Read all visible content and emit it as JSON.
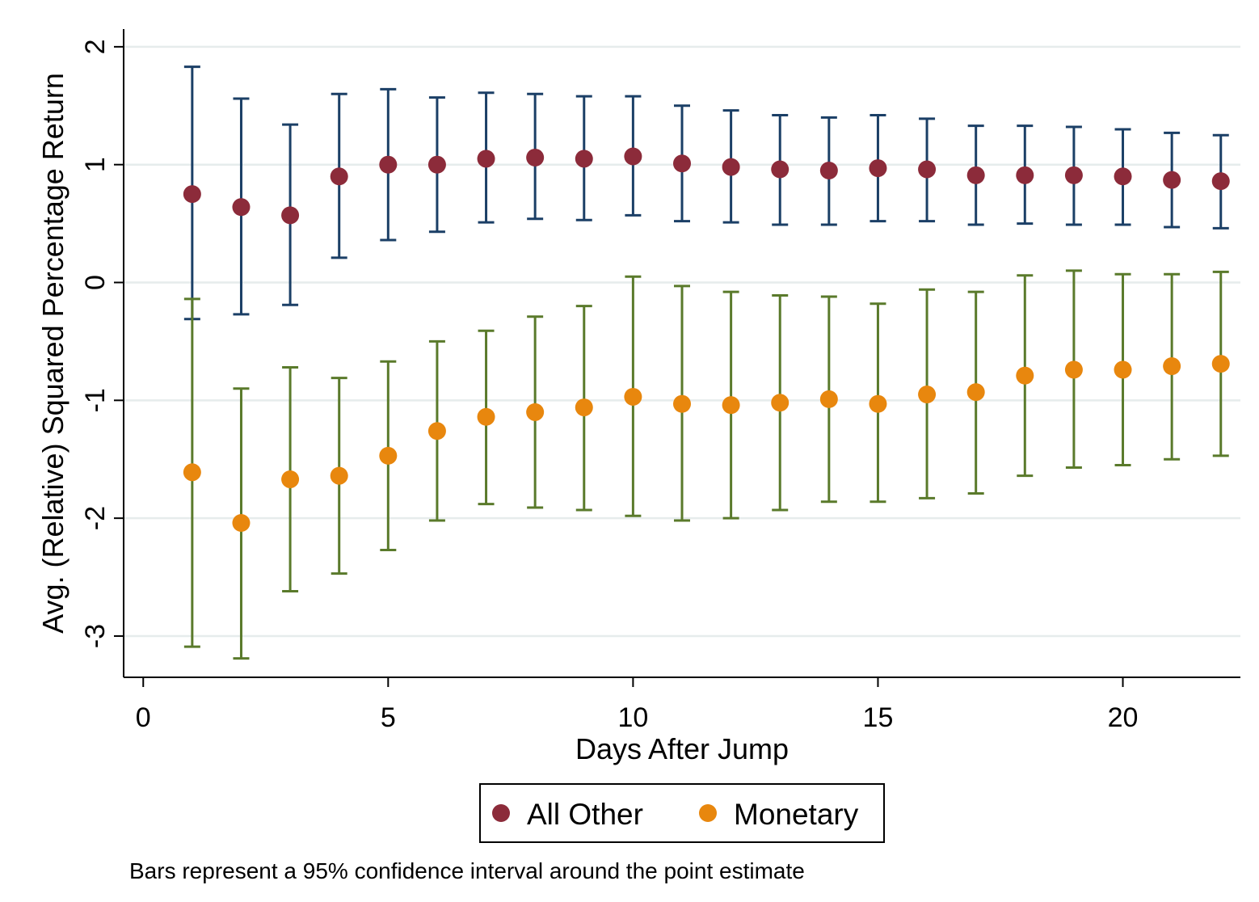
{
  "chart_data": {
    "type": "scatter",
    "xlabel": "Days After Jump",
    "ylabel": "Avg. (Relative) Squared Percentage Return",
    "xlim": [
      -0.4,
      22.4
    ],
    "ylim": [
      -3.35,
      2.15
    ],
    "xticks": [
      0,
      5,
      10,
      15,
      20
    ],
    "yticks": [
      -3,
      -2,
      -1,
      0,
      1,
      2
    ],
    "grid": "horizontal",
    "legend_position": "bottom",
    "note": "Bars represent a 95% confidence interval around the point estimate",
    "x": [
      1,
      2,
      3,
      4,
      5,
      6,
      7,
      8,
      9,
      10,
      11,
      12,
      13,
      14,
      15,
      16,
      17,
      18,
      19,
      20,
      21,
      22
    ],
    "series": [
      {
        "name": "All Other",
        "color": "#8c2b3a",
        "bar_color": "#1b3f66",
        "values": [
          0.75,
          0.64,
          0.57,
          0.9,
          1.0,
          1.0,
          1.05,
          1.06,
          1.05,
          1.07,
          1.01,
          0.98,
          0.96,
          0.95,
          0.97,
          0.96,
          0.91,
          0.91,
          0.91,
          0.9,
          0.87,
          0.86
        ],
        "lower": [
          -0.31,
          -0.27,
          -0.19,
          0.21,
          0.36,
          0.43,
          0.51,
          0.54,
          0.53,
          0.57,
          0.52,
          0.51,
          0.49,
          0.49,
          0.52,
          0.52,
          0.49,
          0.5,
          0.49,
          0.49,
          0.47,
          0.46
        ],
        "upper": [
          1.83,
          1.56,
          1.34,
          1.6,
          1.64,
          1.57,
          1.61,
          1.6,
          1.58,
          1.58,
          1.5,
          1.46,
          1.42,
          1.4,
          1.42,
          1.39,
          1.33,
          1.33,
          1.32,
          1.3,
          1.27,
          1.25
        ]
      },
      {
        "name": "Monetary",
        "color": "#e8870e",
        "bar_color": "#5a7a2b",
        "values": [
          -1.61,
          -2.04,
          -1.67,
          -1.64,
          -1.47,
          -1.26,
          -1.14,
          -1.1,
          -1.06,
          -0.97,
          -1.03,
          -1.04,
          -1.02,
          -0.99,
          -1.03,
          -0.95,
          -0.93,
          -0.79,
          -0.74,
          -0.74,
          -0.71,
          -0.69
        ],
        "lower": [
          -3.09,
          -3.19,
          -2.62,
          -2.47,
          -2.27,
          -2.02,
          -1.88,
          -1.91,
          -1.93,
          -1.98,
          -2.02,
          -2.0,
          -1.93,
          -1.86,
          -1.86,
          -1.83,
          -1.79,
          -1.64,
          -1.57,
          -1.55,
          -1.5,
          -1.47
        ],
        "upper": [
          -0.14,
          -0.9,
          -0.72,
          -0.81,
          -0.67,
          -0.5,
          -0.41,
          -0.29,
          -0.2,
          0.05,
          -0.03,
          -0.08,
          -0.11,
          -0.12,
          -0.18,
          -0.06,
          -0.08,
          0.06,
          0.1,
          0.07,
          0.07,
          0.09
        ]
      }
    ]
  },
  "legend": {
    "items": [
      {
        "label": "All Other",
        "color": "#8c2b3a"
      },
      {
        "label": "Monetary",
        "color": "#e8870e"
      }
    ]
  }
}
